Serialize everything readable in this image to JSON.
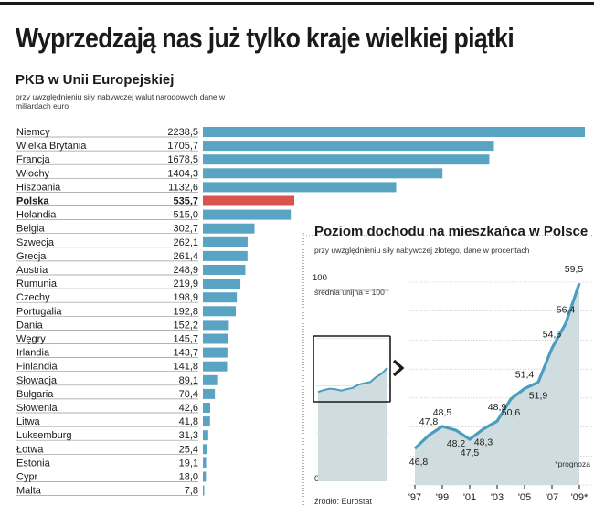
{
  "headline": "Wyprzedzają nas już tylko kraje wielkiej piątki",
  "colors": {
    "bar": "#5aa4c3",
    "highlight": "#d9534f",
    "area": "#cfdde0",
    "line": "#4a9dbf"
  },
  "chart_data": [
    {
      "type": "bar",
      "orientation": "horizontal",
      "title": "PKB w Unii Europejskiej",
      "subtitle": "przy uwzględnieniu siły nabywczej walut narodowych dane w miliardach euro",
      "highlight": "Polska",
      "categories": [
        "Niemcy",
        "Wielka Brytania",
        "Francja",
        "Włochy",
        "Hiszpania",
        "Polska",
        "Holandia",
        "Belgia",
        "Szwecja",
        "Grecja",
        "Austria",
        "Rumunia",
        "Czechy",
        "Portugalia",
        "Dania",
        "Węgry",
        "Irlandia",
        "Finlandia",
        "Słowacja",
        "Bułgaria",
        "Słowenia",
        "Litwa",
        "Luksemburg",
        "Łotwa",
        "Estonia",
        "Cypr",
        "Malta"
      ],
      "labels": [
        "2238,5",
        "1705,7",
        "1678,5",
        "1404,3",
        "1132,6",
        "535,7",
        "515,0",
        "302,7",
        "262,1",
        "261,4",
        "248,9",
        "219,9",
        "198,9",
        "192,8",
        "152,2",
        "145,7",
        "143,7",
        "141,8",
        "89,1",
        "70,4",
        "42,6",
        "41,8",
        "31,3",
        "25,4",
        "19,1",
        "18,0",
        "7,8"
      ],
      "values": [
        2238.5,
        1705.7,
        1678.5,
        1404.3,
        1132.6,
        535.7,
        515.0,
        302.7,
        262.1,
        261.4,
        248.9,
        219.9,
        198.9,
        192.8,
        152.2,
        145.7,
        143.7,
        141.8,
        89.1,
        70.4,
        42.6,
        41.8,
        31.3,
        25.4,
        19.1,
        18.0,
        7.8
      ],
      "xlim": [
        0,
        2238.5
      ]
    },
    {
      "type": "line",
      "title": "Poziom dochodu na mieszkańca w Polsce",
      "subtitle": "przy uwzględnieniu siły nabywczej złotego, dane w procentach",
      "x": [
        1997,
        1998,
        1999,
        2000,
        2001,
        2002,
        2003,
        2004,
        2005,
        2006,
        2007,
        2008,
        2009
      ],
      "values": [
        46.8,
        47.8,
        48.5,
        48.2,
        47.5,
        48.3,
        48.9,
        50.6,
        51.4,
        51.9,
        54.5,
        56.4,
        59.5
      ],
      "labels": [
        "46,8",
        "47,8",
        "48,5",
        "48,2",
        "47,5",
        "48,3",
        "48,9",
        "50,6",
        "51,4",
        "51,9",
        "54,5",
        "56,4",
        "59,5"
      ],
      "xticks": [
        "'97",
        "'99",
        "'01",
        "'03",
        "'05",
        "'07",
        "'09*"
      ],
      "ylim_zoom": [
        44,
        60
      ],
      "inset": {
        "ylim": [
          0,
          100
        ],
        "top_label": "100",
        "bottom_label": "0",
        "reference_label": "średnia unijna = 100"
      },
      "note": "*prognoza",
      "source": "źródło: Eurostat"
    }
  ]
}
